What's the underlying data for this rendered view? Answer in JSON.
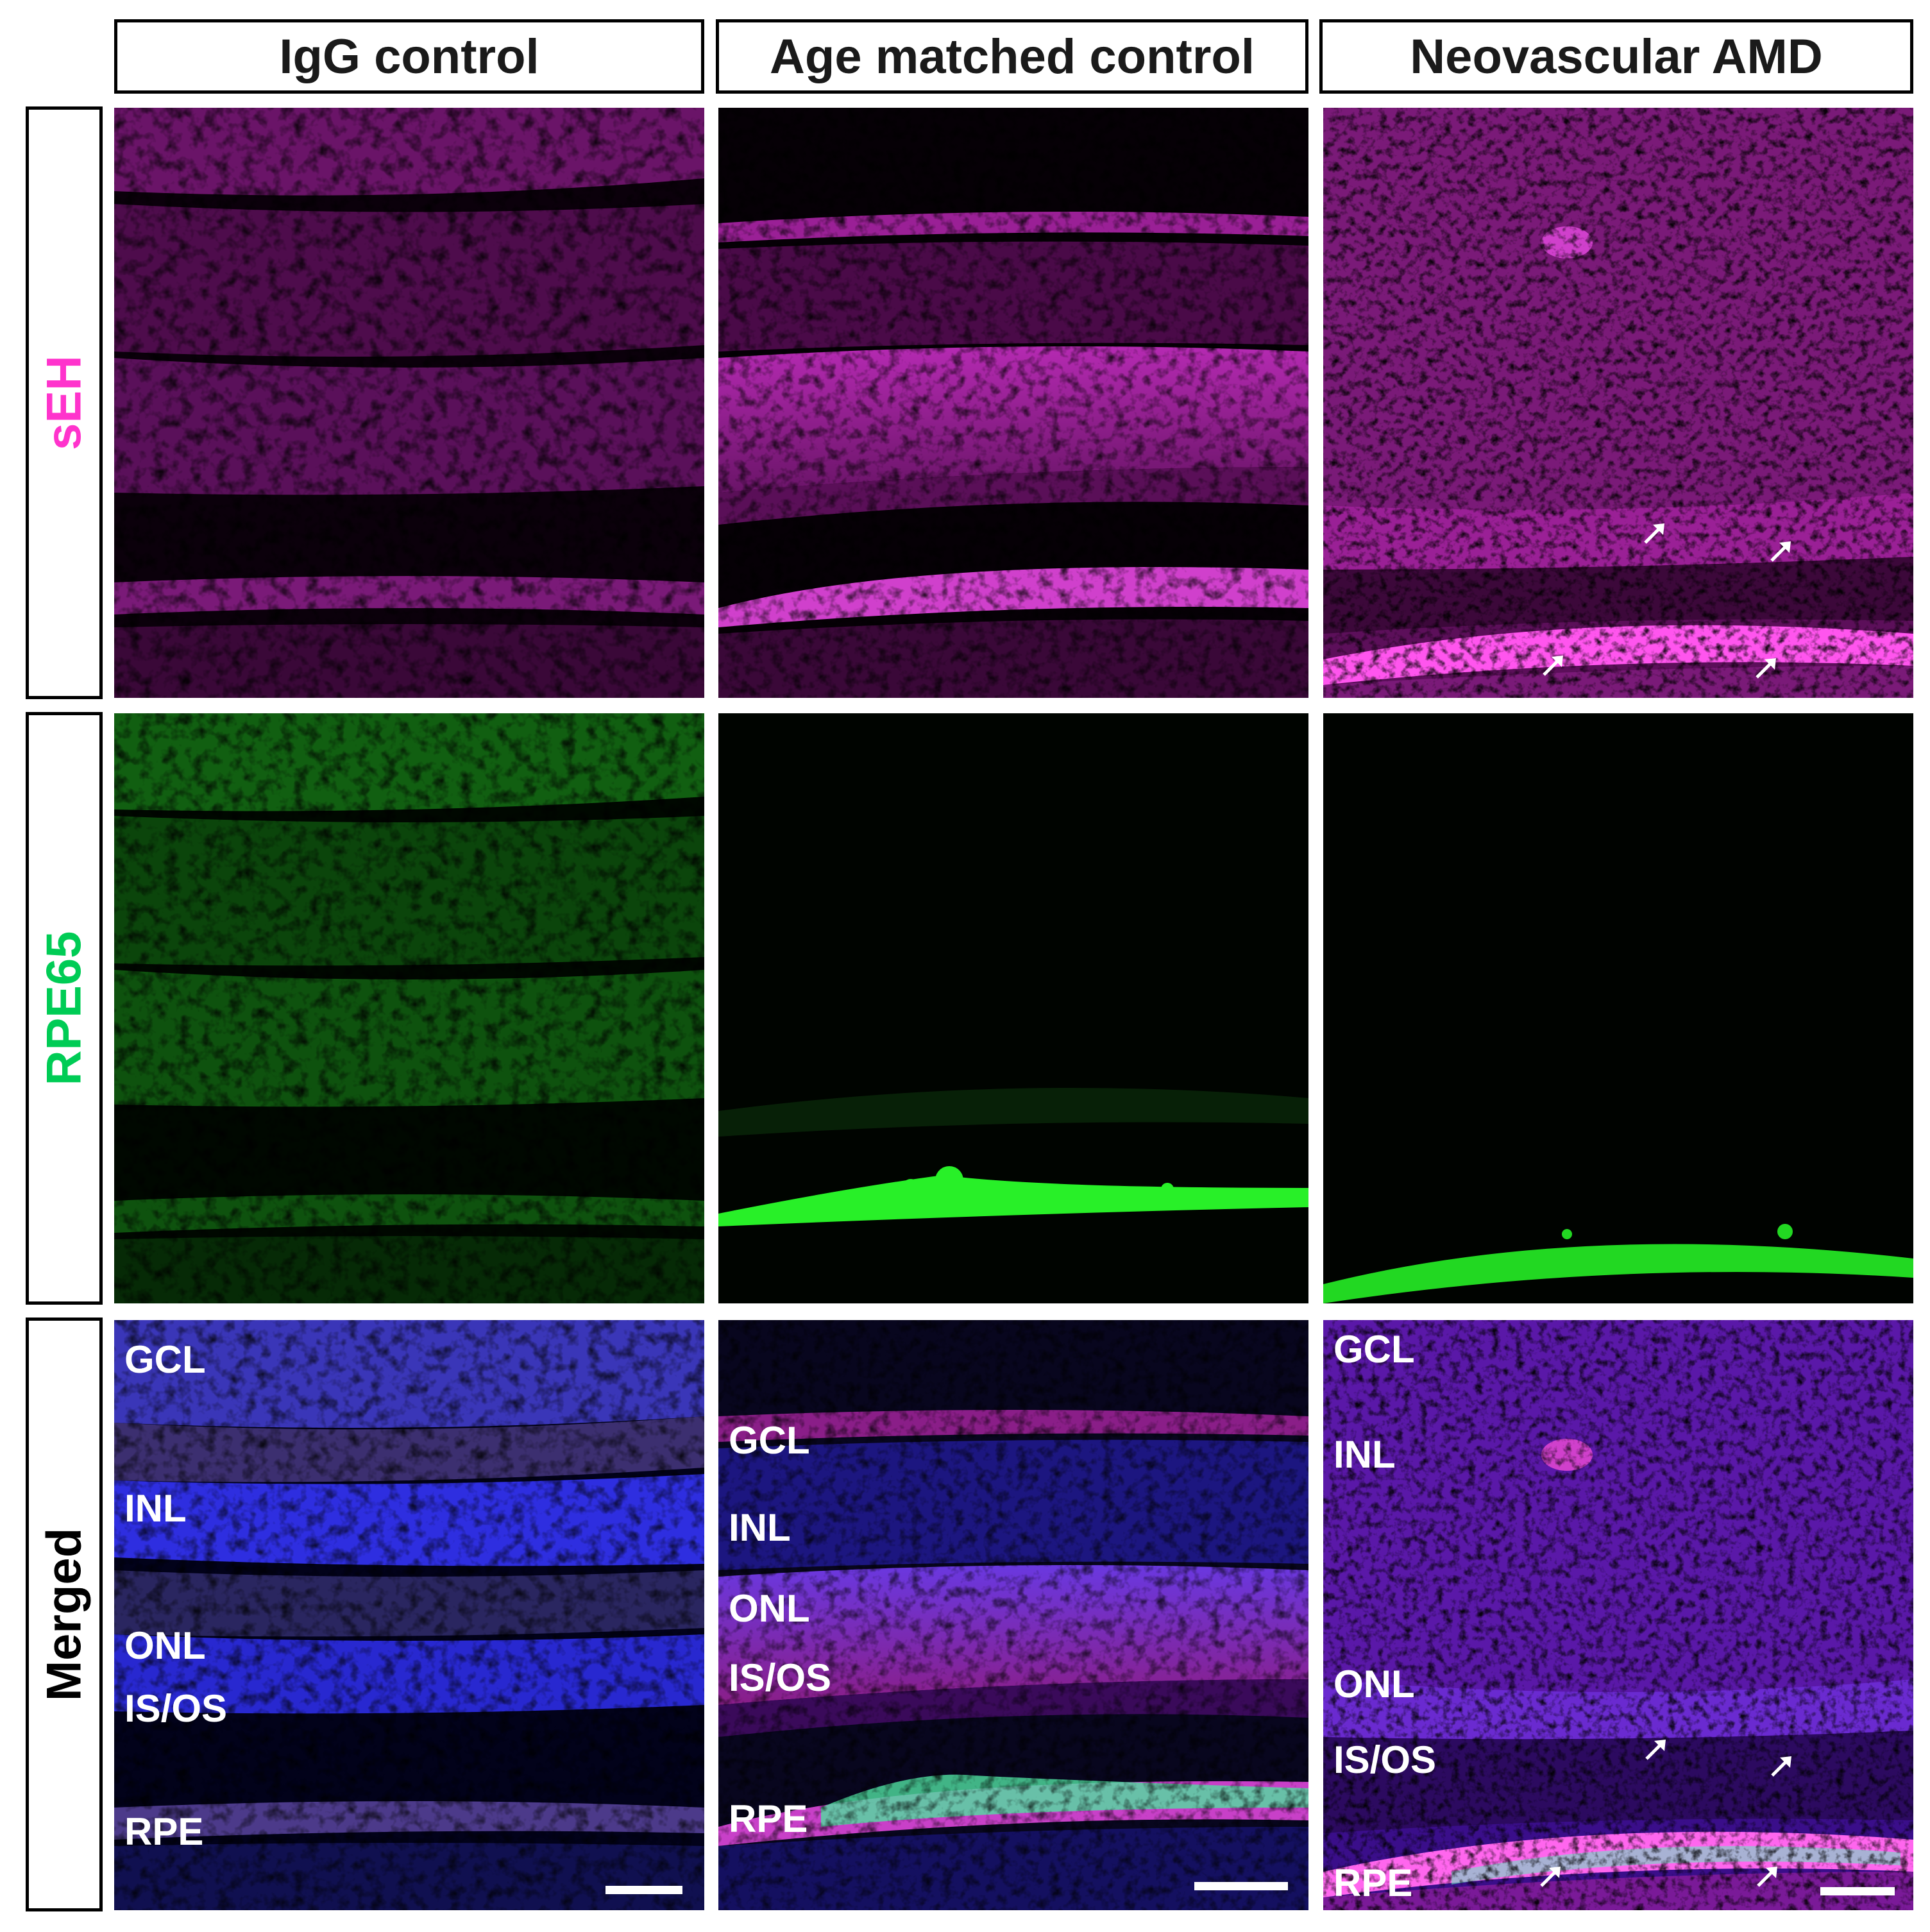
{
  "columns": [
    "IgG control",
    "Age matched control",
    "Neovascular AMD"
  ],
  "rows": [
    {
      "label": "sEH",
      "color": "#ff33cc"
    },
    {
      "label": "RPE65",
      "color": "#00cc55"
    },
    {
      "label": "Merged",
      "color": "#000000"
    }
  ],
  "stain_colors": {
    "sEH": "#e020e0",
    "RPE65": "#22ee22",
    "DAPI": "#3333ff"
  },
  "layers": {
    "igg": [
      "GCL",
      "INL",
      "ONL",
      "IS/OS",
      "RPE"
    ],
    "age": [
      "GCL",
      "INL",
      "ONL",
      "IS/OS",
      "RPE"
    ],
    "amd": [
      "GCL",
      "INL",
      "ONL",
      "IS/OS",
      "RPE"
    ]
  },
  "arrow_icon": "arrow-up-right-icon"
}
